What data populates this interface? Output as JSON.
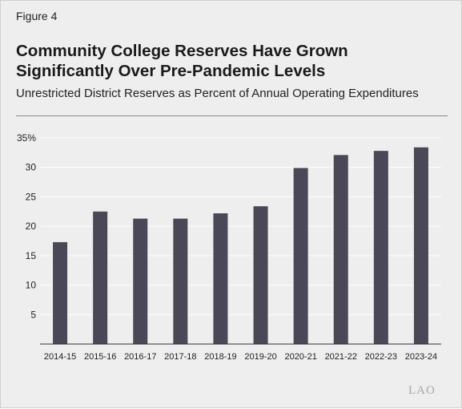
{
  "figure_label": "Figure 4",
  "title_lines": [
    "Community College Reserves Have Grown",
    "Significantly Over Pre-Pandemic Levels"
  ],
  "subtitle": "Unrestricted District Reserves as Percent of Annual Operating Expenditures",
  "watermark": "LAO",
  "colors": {
    "bar": "#4a4857",
    "grid": "#ffffff",
    "axis": "#333333",
    "background": "#eeeeee"
  },
  "chart_data": {
    "type": "bar",
    "categories": [
      "2014-15",
      "2015-16",
      "2016-17",
      "2017-18",
      "2018-19",
      "2019-20",
      "2020-21",
      "2021-22",
      "2022-23",
      "2023-24"
    ],
    "values": [
      17.3,
      22.5,
      21.3,
      21.3,
      22.2,
      23.4,
      29.9,
      32.1,
      32.8,
      33.4
    ],
    "ylim": [
      0,
      35
    ],
    "yticks": [
      5,
      10,
      15,
      20,
      25,
      30,
      35
    ],
    "ytick_labels": [
      "5",
      "10",
      "15",
      "20",
      "25",
      "30",
      "35%"
    ],
    "grid": true,
    "legend": "none",
    "xlabel": "",
    "ylabel": ""
  }
}
